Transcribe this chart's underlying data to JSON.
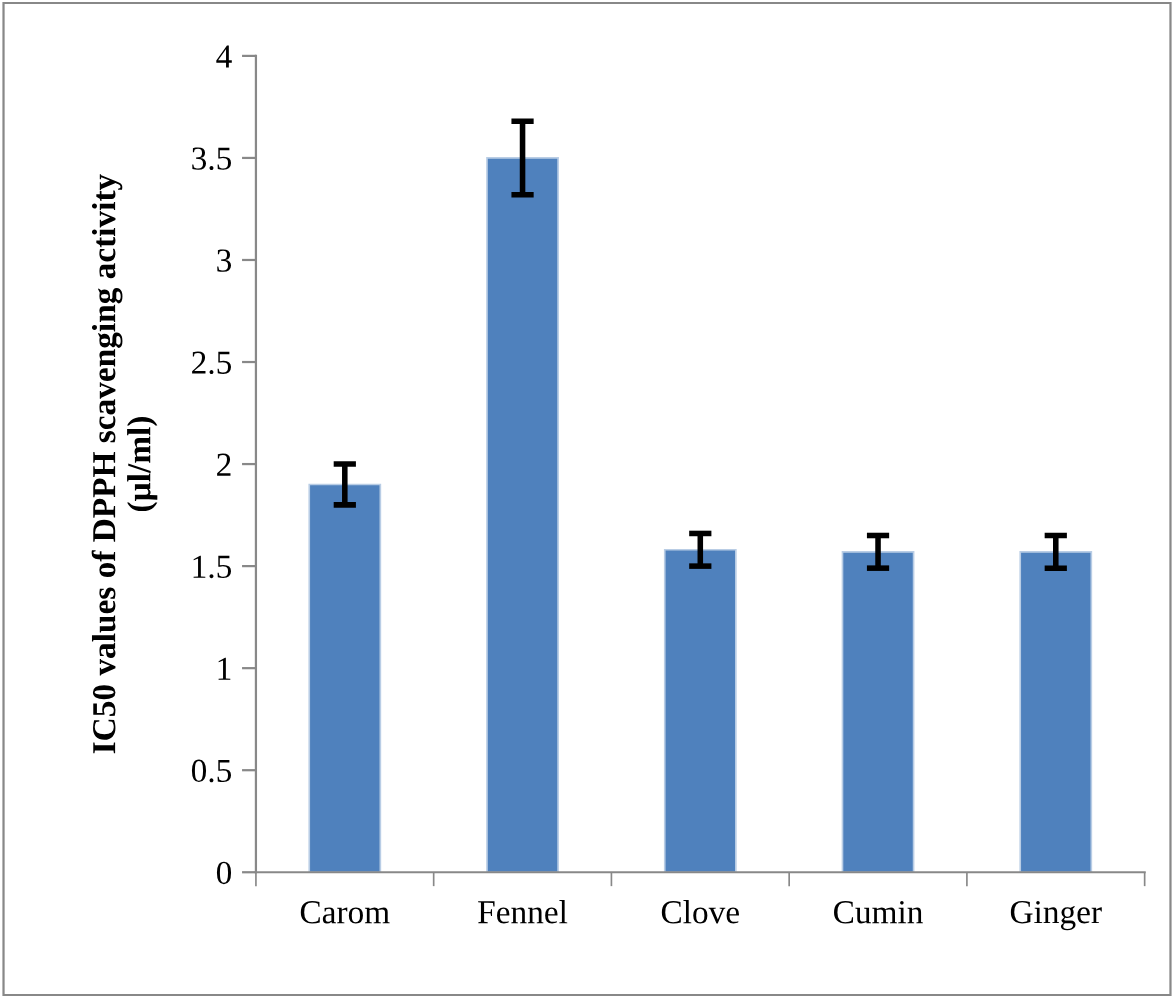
{
  "chart_data": {
    "type": "bar",
    "categories": [
      "Carom",
      "Fennel",
      "Clove",
      "Cumin",
      "Ginger"
    ],
    "values": [
      1.9,
      3.5,
      1.58,
      1.57,
      1.57
    ],
    "errors": [
      0.1,
      0.18,
      0.08,
      0.08,
      0.08
    ],
    "color": "#4f81bd",
    "ylabel": "IC50 values of DPPH scavenging activity\n(µl/ml)",
    "ylim": [
      0,
      4
    ],
    "yticks": [
      0,
      0.5,
      1,
      1.5,
      2,
      2.5,
      3,
      3.5,
      4
    ],
    "grid": false,
    "legend": false
  }
}
